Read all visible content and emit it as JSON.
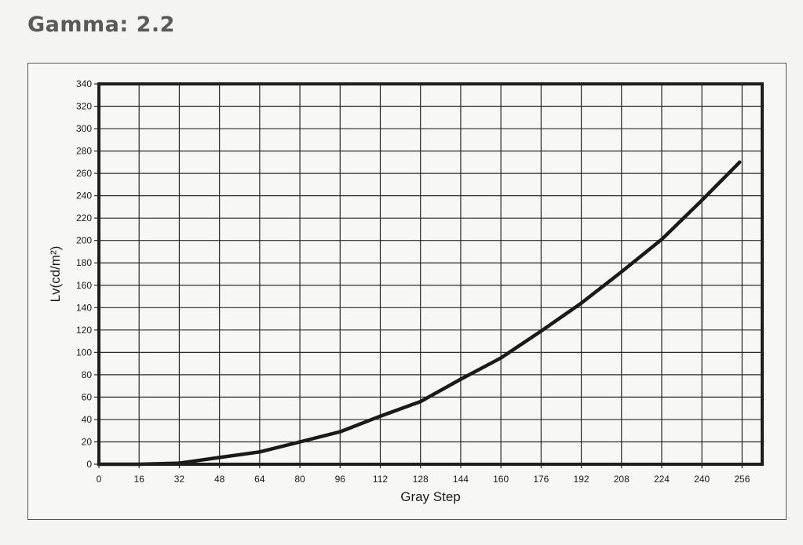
{
  "page": {
    "title": "Gamma: 2.2"
  },
  "chart_data": {
    "type": "line",
    "title": "Gamma: 2.2",
    "xlabel": "Gray Step",
    "ylabel": "Lv(cd/m²)",
    "xlim": [
      0,
      264
    ],
    "ylim": [
      0,
      340
    ],
    "xticks": [
      0,
      16,
      32,
      48,
      64,
      80,
      96,
      112,
      128,
      144,
      160,
      176,
      192,
      208,
      224,
      240,
      256
    ],
    "yticks": [
      0,
      20,
      40,
      60,
      80,
      100,
      120,
      140,
      160,
      180,
      200,
      220,
      240,
      260,
      280,
      300,
      320,
      340
    ],
    "grid": true,
    "series": [
      {
        "color": "#1a1a1a",
        "x": [
          0,
          16,
          32,
          48,
          64,
          80,
          96,
          112,
          128,
          144,
          160,
          176,
          192,
          208,
          224,
          240,
          255
        ],
        "y": [
          0,
          0,
          1,
          6,
          11,
          20,
          29,
          43,
          56,
          76,
          95,
          119,
          144,
          172,
          201,
          236,
          270
        ]
      }
    ]
  }
}
